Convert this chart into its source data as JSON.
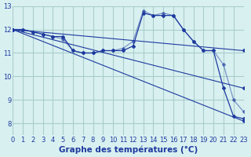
{
  "background_color": "#d8f0f0",
  "grid_color": "#aacccc",
  "line_color": "#1e3a9f",
  "xlabel": "Graphe des températures (°C)",
  "xlabel_fontsize": 7.5,
  "tick_fontsize": 6,
  "xlim": [
    0,
    23
  ],
  "ylim": [
    7.5,
    13
  ],
  "yticks": [
    8,
    9,
    10,
    11,
    12,
    13
  ],
  "xticks": [
    0,
    1,
    2,
    3,
    4,
    5,
    6,
    7,
    8,
    9,
    10,
    11,
    12,
    13,
    14,
    15,
    16,
    17,
    18,
    19,
    20,
    21,
    22,
    23
  ],
  "series": [
    {
      "x": [
        0,
        1,
        2,
        3,
        4,
        5,
        6,
        7,
        8,
        9,
        10,
        11,
        12,
        13,
        14,
        15,
        16,
        17,
        18,
        19,
        20,
        21,
        22,
        23
      ],
      "y": [
        12.0,
        12.0,
        11.9,
        11.8,
        11.7,
        11.7,
        11.1,
        11.0,
        11.0,
        11.1,
        11.1,
        11.1,
        11.3,
        12.7,
        12.6,
        12.6,
        12.6,
        12.0,
        11.5,
        11.1,
        11.1,
        9.5,
        8.3,
        8.2
      ]
    },
    {
      "x": [
        0,
        1,
        2,
        3,
        4,
        5,
        6,
        7,
        8,
        9,
        10,
        11,
        12,
        13,
        14,
        15,
        16,
        17,
        18,
        19,
        20,
        21,
        22,
        23
      ],
      "y": [
        12.0,
        12.0,
        11.9,
        11.8,
        11.7,
        11.6,
        11.1,
        11.0,
        11.0,
        11.1,
        11.1,
        11.2,
        11.5,
        12.8,
        12.6,
        12.7,
        12.6,
        12.0,
        11.5,
        11.1,
        11.1,
        10.5,
        9.0,
        8.5
      ]
    },
    {
      "x": [
        0,
        23
      ],
      "y": [
        12.0,
        11.1
      ]
    },
    {
      "x": [
        0,
        23
      ],
      "y": [
        12.0,
        8.1
      ]
    },
    {
      "x": [
        0,
        23
      ],
      "y": [
        12.0,
        9.5
      ]
    }
  ]
}
